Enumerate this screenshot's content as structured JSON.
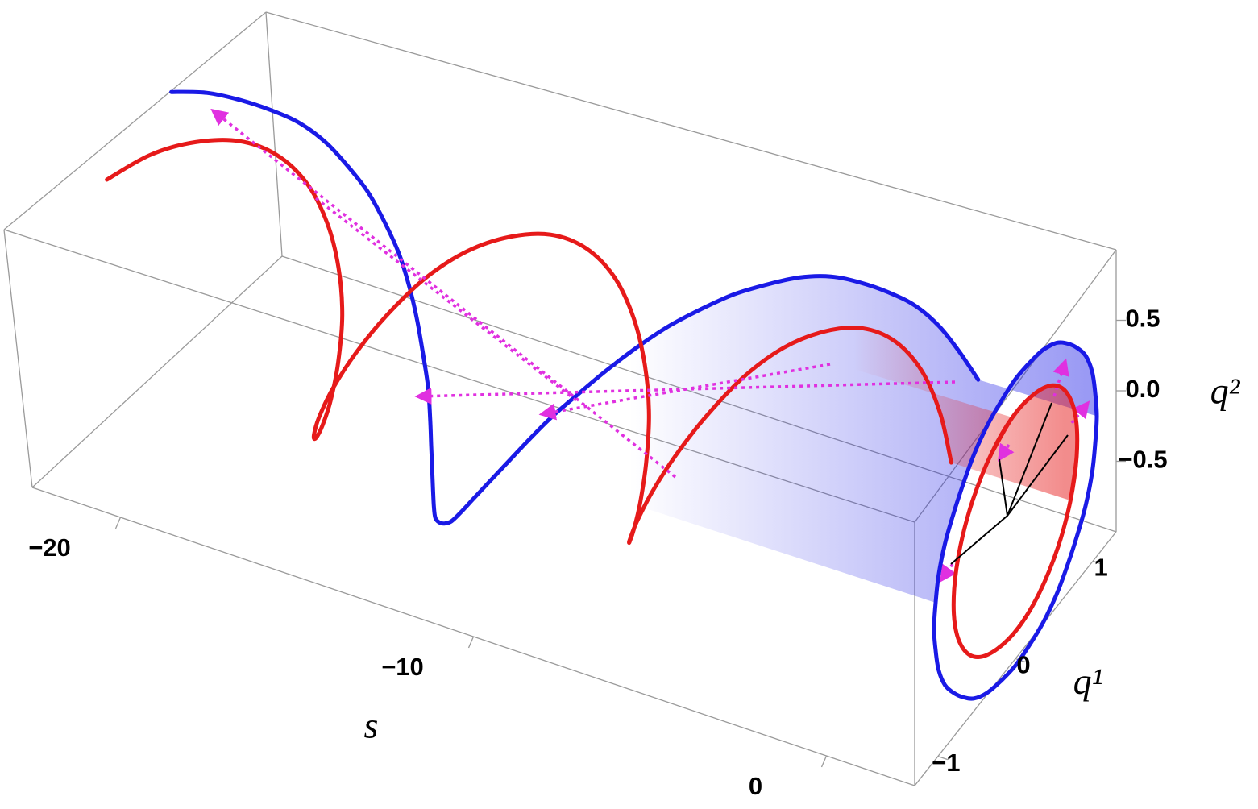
{
  "chart_data": {
    "type": "line3d",
    "s_label": "s",
    "q1_label": "q¹",
    "q2_label": "q²",
    "slim": [
      -22.5,
      2.5
    ],
    "q1lim": [
      -1.3,
      1.3
    ],
    "q2lim": [
      -1,
      1
    ],
    "sticks": [
      {
        "value": -20,
        "label": "−20"
      },
      {
        "value": -10,
        "label": "−10"
      },
      0
    ],
    "q1ticks": [
      {
        "value": -1,
        "label": "−1"
      },
      0,
      1
    ],
    "q2ticks": [
      {
        "value": -0.5,
        "label": "−0.5"
      },
      {
        "value": 0,
        "label": "0.0"
      },
      0.5
    ],
    "s": [
      -22.5,
      -22,
      -21.5,
      -21,
      -20.5,
      -20,
      -19.5,
      -19,
      -18.5,
      -18,
      -17.5,
      -17,
      -16.5,
      -16,
      -15.5,
      -15,
      -14.5,
      -14,
      -13.5,
      -13,
      -12.5,
      -12,
      -11.5,
      -11,
      -10.5,
      -10,
      -9.5,
      -9,
      -8.5,
      -8,
      -7.5,
      -7,
      -6.5,
      -6,
      -5.5,
      -5,
      -4.5,
      -4,
      -3.5,
      -3,
      -2.5,
      -2,
      -1.5,
      -1
    ],
    "series": [
      {
        "color": "#1a1ae6",
        "q1": [
          0.36,
          0.53,
          0.67,
          0.8,
          0.91,
          0.99,
          1.03,
          1.05,
          1.03,
          0.99,
          0.91,
          0.8,
          0.67,
          0.53,
          0.36,
          0.18,
          0,
          -0.18,
          -0.36,
          -0.53,
          -0.67,
          -0.8,
          -0.91,
          -0.99,
          -1.03,
          -1.05,
          -1.03,
          -0.99,
          -0.91,
          -0.8,
          -0.67,
          -0.53,
          -0.36,
          -0.18,
          0,
          0.18,
          0.36,
          0.53,
          0.67,
          0.8,
          0.91,
          0.99,
          1.03,
          1.05
        ],
        "q2": [
          0.99,
          0.91,
          0.8,
          0.67,
          0.53,
          0.36,
          0.18,
          0,
          -0.18,
          -0.36,
          -0.53,
          -0.67,
          -0.8,
          -0.91,
          -0.99,
          -1.03,
          -1.05,
          -1.03,
          -0.99,
          -0.91,
          -0.8,
          -0.67,
          -0.53,
          -0.36,
          -0.18,
          0,
          0.18,
          0.36,
          0.53,
          0.67,
          0.8,
          0.91,
          0.99,
          1.03,
          1.05,
          1.03,
          0.99,
          0.91,
          0.8,
          0.67,
          0.53,
          0.36,
          0.18,
          0
        ]
      },
      {
        "color": "#e61a1a",
        "q1": [
          -0.31,
          -0.04,
          0.23,
          0.48,
          0.67,
          0.78,
          0.79,
          0.71,
          0.55,
          0.31,
          0.04,
          -0.23,
          -0.48,
          -0.67,
          -0.78,
          -0.79,
          -0.71,
          -0.55,
          -0.31,
          -0.04,
          0.23,
          0.48,
          0.67,
          0.78,
          0.79,
          0.71,
          0.55,
          0.31,
          0.04,
          -0.23,
          -0.48,
          -0.67,
          -0.78,
          -0.79,
          -0.71,
          -0.55,
          -0.31,
          -0.04,
          0.23,
          0.48,
          0.67,
          0.78,
          0.79,
          0.71
        ],
        "q2": [
          0.74,
          0.8,
          0.76,
          0.64,
          0.44,
          0.18,
          -0.1,
          -0.36,
          -0.58,
          -0.74,
          -0.8,
          -0.76,
          -0.64,
          -0.44,
          -0.18,
          0.1,
          0.36,
          0.58,
          0.74,
          0.8,
          0.76,
          0.64,
          0.44,
          0.18,
          -0.1,
          -0.36,
          -0.58,
          -0.74,
          -0.8,
          -0.76,
          -0.64,
          -0.44,
          -0.18,
          0.1,
          0.36,
          0.58,
          0.74,
          0.8,
          0.76,
          0.64,
          0.44,
          0.18,
          -0.1,
          -0.36
        ]
      }
    ]
  }
}
